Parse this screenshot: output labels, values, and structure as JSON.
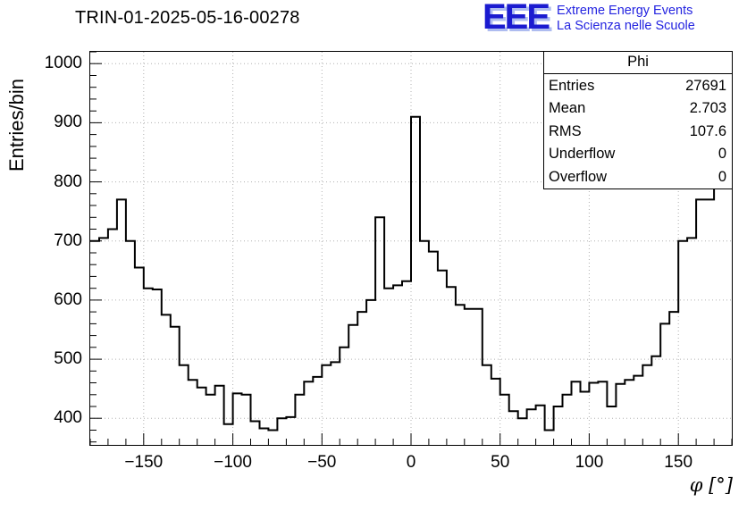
{
  "header": {
    "title": "TRIN-01-2025-05-16-00278"
  },
  "logo": {
    "acronym": "EEE",
    "line1": "Extreme Energy Events",
    "line2": "La Scienza nelle Scuole",
    "color": "#1b1bd0",
    "shadow_color": "#aebcf0",
    "text_color": "#2323e0"
  },
  "stats": {
    "title": "Phi",
    "rows": [
      {
        "label": "Entries",
        "value": "27691"
      },
      {
        "label": "Mean",
        "value": "2.703"
      },
      {
        "label": "RMS",
        "value": "107.6"
      },
      {
        "label": "Underflow",
        "value": "0"
      },
      {
        "label": "Overflow",
        "value": "0"
      }
    ]
  },
  "chart_data": {
    "type": "bar",
    "style": "step-histogram",
    "title": "TRIN-01-2025-05-16-00278",
    "xlabel": "φ [°]",
    "ylabel": "Entries/bin",
    "xlim": [
      -180,
      180
    ],
    "ylim": [
      355,
      1020
    ],
    "x_start": -180,
    "bin_width": 5,
    "values": [
      700,
      705,
      720,
      770,
      700,
      655,
      620,
      618,
      575,
      555,
      490,
      465,
      452,
      440,
      455,
      390,
      442,
      440,
      395,
      383,
      380,
      400,
      402,
      440,
      462,
      470,
      490,
      495,
      520,
      558,
      580,
      600,
      740,
      620,
      625,
      632,
      910,
      700,
      682,
      650,
      622,
      592,
      585,
      585,
      490,
      467,
      440,
      412,
      400,
      415,
      422,
      380,
      420,
      440,
      462,
      445,
      460,
      462,
      420,
      458,
      465,
      472,
      490,
      505,
      560,
      580,
      700,
      705,
      770,
      770,
      1000,
      1000
    ],
    "x_ticks": [
      -150,
      -100,
      -50,
      0,
      50,
      100,
      150
    ],
    "y_ticks": [
      400,
      500,
      600,
      700,
      800,
      900,
      1000
    ],
    "x_minor_step": 10,
    "y_minor_step": 20,
    "grid": true,
    "grid_color": "#b0b0b0",
    "line_color": "#000000",
    "legend": "none"
  }
}
